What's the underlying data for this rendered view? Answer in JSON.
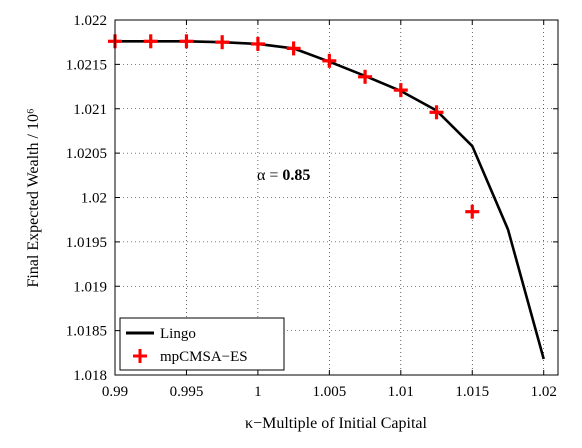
{
  "chart_data": {
    "type": "line",
    "xlabel": "κ−Multiple of Initial Capital",
    "ylabel": "Final Expected Wealth / 10⁶",
    "xlim": [
      0.99,
      1.021
    ],
    "ylim": [
      1.018,
      1.022
    ],
    "x_ticks": [
      0.99,
      0.995,
      1,
      1.005,
      1.01,
      1.015,
      1.02
    ],
    "x_tick_labels": [
      "0.99",
      "0.995",
      "1",
      "1.005",
      "1.01",
      "1.015",
      "1.02"
    ],
    "y_ticks": [
      1.018,
      1.0185,
      1.019,
      1.0195,
      1.02,
      1.0205,
      1.021,
      1.0215,
      1.022
    ],
    "y_tick_labels": [
      "1.018",
      "1.0185",
      "1.019",
      "1.0195",
      "1.02",
      "1.0205",
      "1.021",
      "1.0215",
      "1.022"
    ],
    "grid": true,
    "legend_position": "bottom-left",
    "annotation": {
      "prefix": "α = ",
      "value": "0.85"
    },
    "series": [
      {
        "name": "Lingo",
        "style": "line",
        "color": "#000000",
        "x": [
          0.99,
          0.9925,
          0.995,
          0.9975,
          1.0,
          1.0025,
          1.005,
          1.0075,
          1.01,
          1.0125,
          1.015,
          1.0175,
          1.02
        ],
        "y": [
          1.02176,
          1.02176,
          1.02176,
          1.02175,
          1.02173,
          1.02168,
          1.02153,
          1.02137,
          1.0212,
          1.02098,
          1.02058,
          1.01964,
          1.01818
        ]
      },
      {
        "name": "mpCMSA−ES",
        "style": "marker",
        "marker": "plus",
        "color": "#ff0000",
        "x": [
          0.99,
          0.9925,
          0.995,
          0.9975,
          1.0,
          1.0025,
          1.005,
          1.0075,
          1.01,
          1.0125,
          1.015
        ],
        "y": [
          1.02176,
          1.02176,
          1.02176,
          1.02175,
          1.02173,
          1.02168,
          1.02154,
          1.02136,
          1.02121,
          1.02096,
          1.01984
        ]
      }
    ]
  }
}
